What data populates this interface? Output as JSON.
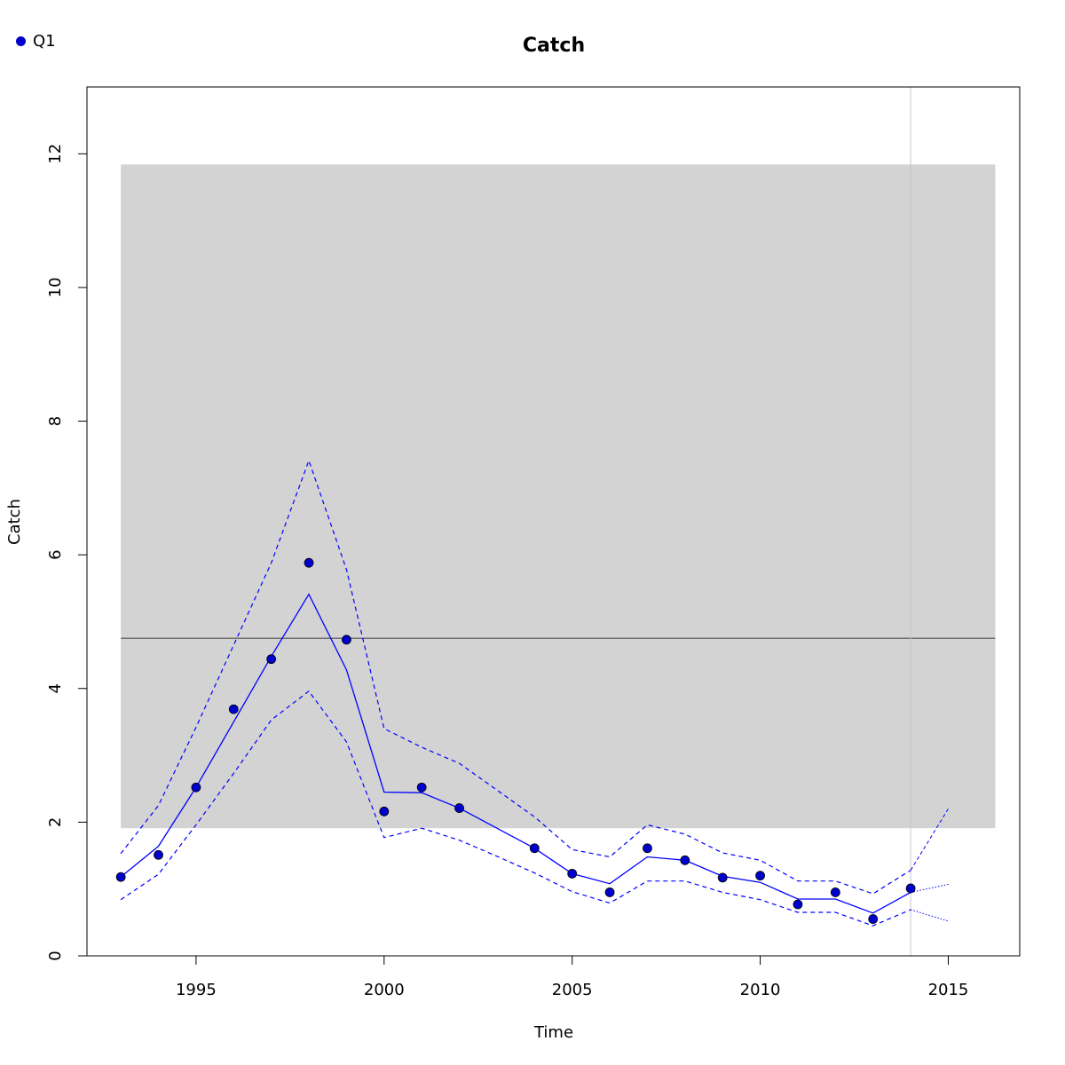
{
  "chart_data": {
    "type": "line",
    "title": "Catch",
    "xlabel": "Time",
    "ylabel": "Catch",
    "xlim": [
      1992.1,
      2016.9
    ],
    "ylim": [
      0,
      13
    ],
    "x_ticks": [
      1995,
      2000,
      2005,
      2010,
      2015
    ],
    "x_tick_labels": [
      "1995",
      "2000",
      "2005",
      "2010",
      "2015"
    ],
    "y_ticks": [
      0,
      2,
      4,
      6,
      8,
      10,
      12
    ],
    "y_tick_labels": [
      "0",
      "2",
      "4",
      "6",
      "8",
      "10",
      "12"
    ],
    "grid": false,
    "legend_position": "top-left",
    "colors": {
      "series": "#0000ff",
      "points": "#0000cd",
      "band": "#d3d3d3",
      "mean_line": "#6e6e6e",
      "vline": "#c8c8c8"
    },
    "series": [
      {
        "name": "Q1",
        "observed": {
          "x": [
            1993,
            1994,
            1995,
            1996,
            1997,
            1998,
            1999,
            2000,
            2001,
            2002,
            2004,
            2005,
            2006,
            2007,
            2008,
            2009,
            2010,
            2011,
            2012,
            2013,
            2014
          ],
          "y": [
            1.18,
            1.51,
            2.52,
            3.69,
            4.44,
            5.88,
            4.73,
            2.16,
            2.52,
            2.21,
            1.61,
            1.23,
            0.95,
            1.61,
            1.43,
            1.17,
            1.2,
            0.77,
            0.95,
            0.55,
            1.01
          ]
        },
        "fitted": {
          "x": [
            1993,
            1994,
            1995,
            1996,
            1997,
            1998,
            1999,
            2000,
            2001,
            2002,
            2003,
            2004,
            2005,
            2006,
            2007,
            2008,
            2009,
            2010,
            2011,
            2012,
            2013,
            2014
          ],
          "y": [
            1.18,
            1.64,
            2.52,
            3.5,
            4.48,
            5.41,
            4.28,
            2.45,
            2.44,
            2.21,
            1.91,
            1.61,
            1.23,
            1.08,
            1.48,
            1.43,
            1.19,
            1.1,
            0.85,
            0.85,
            0.64,
            0.95
          ]
        },
        "upper": {
          "x": [
            1993,
            1994,
            1995,
            1996,
            1997,
            1998,
            1999,
            2000,
            2001,
            2002,
            2003,
            2004,
            2005,
            2006,
            2007,
            2008,
            2009,
            2010,
            2011,
            2012,
            2013,
            2014
          ],
          "y": [
            1.53,
            2.25,
            3.42,
            4.65,
            5.88,
            7.41,
            5.78,
            3.4,
            3.12,
            2.88,
            2.48,
            2.08,
            1.59,
            1.48,
            1.96,
            1.82,
            1.54,
            1.43,
            1.12,
            1.12,
            0.93,
            1.28
          ]
        },
        "lower": {
          "x": [
            1993,
            1994,
            1995,
            1996,
            1997,
            1998,
            1999,
            2000,
            2001,
            2002,
            2003,
            2004,
            2005,
            2006,
            2007,
            2008,
            2009,
            2010,
            2011,
            2012,
            2013,
            2014
          ],
          "y": [
            0.84,
            1.22,
            1.96,
            2.73,
            3.53,
            3.96,
            3.2,
            1.77,
            1.91,
            1.73,
            1.49,
            1.24,
            0.96,
            0.79,
            1.12,
            1.12,
            0.95,
            0.84,
            0.65,
            0.65,
            0.45,
            0.69
          ]
        },
        "forecast": {
          "x": [
            2014,
            2015
          ],
          "fitted": [
            0.95,
            1.07
          ],
          "upper": [
            1.28,
            2.2
          ],
          "lower": [
            0.69,
            0.52
          ]
        }
      }
    ],
    "reference_band": {
      "x": [
        1993,
        2016.25
      ],
      "y": [
        1.91,
        11.84
      ]
    },
    "reference_line": {
      "y": 4.75
    },
    "vertical_line": {
      "x": 2014
    }
  }
}
